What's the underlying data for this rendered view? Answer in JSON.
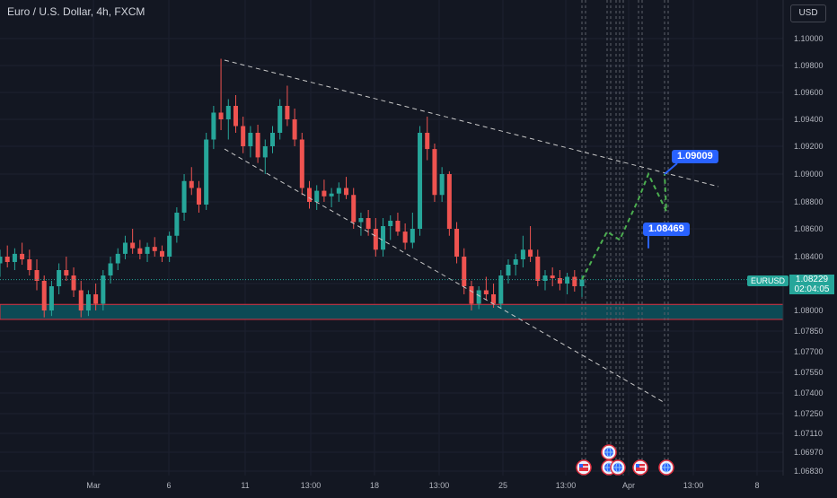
{
  "header": {
    "title": "Euro / U.S. Dollar, 4h, FXCM",
    "currency_button": "USD"
  },
  "symbol_label": "EURUSD",
  "current_price": "1.08229",
  "countdown": "02:04:05",
  "callouts": {
    "upper": "1.09009",
    "lower": "1.08469"
  },
  "colors": {
    "background": "#131722",
    "up": "#26a69a",
    "down": "#ef5350",
    "projection": "#4caf50",
    "callout": "#2962ff",
    "support_zone": "#0c4a55",
    "trendline": "#c8c8c8"
  },
  "event_icons": [
    "us-flag-icon",
    "globe-icon",
    "globe-icon",
    "globe-icon",
    "us-flag-icon",
    "globe-icon"
  ],
  "chart_data": {
    "type": "candlestick",
    "title": "Euro / U.S. Dollar, 4h, FXCM",
    "y_range": [
      1.0675,
      1.1015
    ],
    "y_ticks": [
      "1.10000",
      "1.09800",
      "1.09600",
      "1.09400",
      "1.09200",
      "1.09000",
      "1.08800",
      "1.08600",
      "1.08400",
      "1.08200",
      "1.08000",
      "1.07850",
      "1.07700",
      "1.07550",
      "1.07400",
      "1.07250",
      "1.07110",
      "1.06970",
      "1.06830"
    ],
    "x_ticks": [
      "Mar",
      "6",
      "11",
      "13:00",
      "18",
      "13:00",
      "25",
      "13:00",
      "Apr",
      "13:00",
      "8"
    ],
    "candles": [
      [
        1.0835,
        1.0845,
        1.0825,
        1.084
      ],
      [
        1.084,
        1.0848,
        1.0832,
        1.0836
      ],
      [
        1.0836,
        1.0846,
        1.083,
        1.0842
      ],
      [
        1.0842,
        1.085,
        1.0834,
        1.0838
      ],
      [
        1.0838,
        1.0845,
        1.0826,
        1.083
      ],
      [
        1.083,
        1.0838,
        1.0815,
        1.0822
      ],
      [
        1.0822,
        1.0826,
        1.0795,
        1.08
      ],
      [
        1.08,
        1.0822,
        1.0796,
        1.0818
      ],
      [
        1.0818,
        1.0835,
        1.0812,
        1.083
      ],
      [
        1.083,
        1.084,
        1.0822,
        1.0826
      ],
      [
        1.0826,
        1.0832,
        1.081,
        1.0815
      ],
      [
        1.0815,
        1.0822,
        1.0795,
        1.08
      ],
      [
        1.08,
        1.0815,
        1.0796,
        1.0812
      ],
      [
        1.0812,
        1.082,
        1.08,
        1.0805
      ],
      [
        1.0805,
        1.083,
        1.08,
        1.0826
      ],
      [
        1.0826,
        1.084,
        1.082,
        1.0835
      ],
      [
        1.0835,
        1.0846,
        1.083,
        1.0842
      ],
      [
        1.0842,
        1.0855,
        1.0838,
        1.085
      ],
      [
        1.085,
        1.086,
        1.0842,
        1.0846
      ],
      [
        1.0846,
        1.0852,
        1.0838,
        1.0842
      ],
      [
        1.0842,
        1.085,
        1.0836,
        1.0847
      ],
      [
        1.0847,
        1.0854,
        1.084,
        1.0844
      ],
      [
        1.0844,
        1.0848,
        1.0836,
        1.084
      ],
      [
        1.084,
        1.0858,
        1.0836,
        1.0855
      ],
      [
        1.0855,
        1.0876,
        1.085,
        1.0872
      ],
      [
        1.0872,
        1.09,
        1.0866,
        1.0895
      ],
      [
        1.0895,
        1.0905,
        1.0885,
        1.089
      ],
      [
        1.089,
        1.0895,
        1.0872,
        1.0878
      ],
      [
        1.0878,
        1.093,
        1.0874,
        1.0925
      ],
      [
        1.0925,
        1.095,
        1.0918,
        1.0945
      ],
      [
        1.0945,
        1.0985,
        1.0932,
        1.094
      ],
      [
        1.094,
        1.0955,
        1.0925,
        1.095
      ],
      [
        1.095,
        1.0958,
        1.093,
        1.0935
      ],
      [
        1.0935,
        1.0942,
        1.0915,
        1.092
      ],
      [
        1.092,
        1.0935,
        1.0912,
        1.093
      ],
      [
        1.093,
        1.0936,
        1.0908,
        1.0912
      ],
      [
        1.0912,
        1.0925,
        1.09,
        1.092
      ],
      [
        1.092,
        1.0935,
        1.0915,
        1.093
      ],
      [
        1.093,
        1.0955,
        1.0925,
        1.095
      ],
      [
        1.095,
        1.0965,
        1.0935,
        1.094
      ],
      [
        1.094,
        1.0948,
        1.092,
        1.0925
      ],
      [
        1.0925,
        1.093,
        1.0885,
        1.089
      ],
      [
        1.089,
        1.0895,
        1.0875,
        1.088
      ],
      [
        1.088,
        1.0892,
        1.0874,
        1.0888
      ],
      [
        1.0888,
        1.0896,
        1.088,
        1.0884
      ],
      [
        1.0884,
        1.089,
        1.0876,
        1.0886
      ],
      [
        1.0886,
        1.0894,
        1.088,
        1.089
      ],
      [
        1.089,
        1.0898,
        1.0882,
        1.0885
      ],
      [
        1.0885,
        1.089,
        1.086,
        1.0865
      ],
      [
        1.0865,
        1.0872,
        1.0855,
        1.0868
      ],
      [
        1.0868,
        1.0874,
        1.0855,
        1.086
      ],
      [
        1.086,
        1.0868,
        1.084,
        1.0845
      ],
      [
        1.0845,
        1.0868,
        1.084,
        1.0862
      ],
      [
        1.0862,
        1.087,
        1.0852,
        1.0866
      ],
      [
        1.0866,
        1.0872,
        1.0855,
        1.0858
      ],
      [
        1.0858,
        1.0864,
        1.0845,
        1.085
      ],
      [
        1.085,
        1.0872,
        1.0846,
        1.086
      ],
      [
        1.086,
        1.0935,
        1.0855,
        1.093
      ],
      [
        1.093,
        1.0942,
        1.091,
        1.0918
      ],
      [
        1.0918,
        1.0922,
        1.088,
        1.0885
      ],
      [
        1.0885,
        1.0905,
        1.088,
        1.09
      ],
      [
        1.09,
        1.0902,
        1.0855,
        1.086
      ],
      [
        1.086,
        1.0865,
        1.0835,
        1.084
      ],
      [
        1.084,
        1.0846,
        1.0812,
        1.0818
      ],
      [
        1.0818,
        1.0822,
        1.08,
        1.0805
      ],
      [
        1.0805,
        1.0818,
        1.0801,
        1.0815
      ],
      [
        1.0815,
        1.0825,
        1.0808,
        1.0812
      ],
      [
        1.0812,
        1.082,
        1.0802,
        1.0805
      ],
      [
        1.0805,
        1.083,
        1.0802,
        1.0826
      ],
      [
        1.0826,
        1.0838,
        1.082,
        1.0834
      ],
      [
        1.0834,
        1.0842,
        1.0826,
        1.0838
      ],
      [
        1.0838,
        1.0855,
        1.0832,
        1.0845
      ],
      [
        1.0845,
        1.0862,
        1.0836,
        1.084
      ],
      [
        1.084,
        1.0845,
        1.0818,
        1.0822
      ],
      [
        1.0822,
        1.083,
        1.0815,
        1.0826
      ],
      [
        1.0826,
        1.0832,
        1.0818,
        1.0824
      ],
      [
        1.0824,
        1.083,
        1.0815,
        1.082
      ],
      [
        1.082,
        1.0828,
        1.0812,
        1.0825
      ],
      [
        1.0825,
        1.083,
        1.0814,
        1.0818
      ],
      [
        1.0818,
        1.0826,
        1.081,
        1.0823
      ]
    ],
    "candle_x_range": [
      "Feb 29",
      "Mar 26"
    ],
    "support_zone": [
      1.07935,
      1.08045
    ],
    "trendlines": [
      {
        "name": "upper-trendline",
        "from": [
          1.0984,
          "Mar 8"
        ],
        "to": [
          1.0891,
          "Apr 5"
        ]
      },
      {
        "name": "lower-trendline",
        "from": [
          1.0918,
          "Mar 8"
        ],
        "to": [
          1.0733,
          "Apr 4"
        ]
      }
    ],
    "projection_path": [
      1.0823,
      1.0858,
      1.0852,
      1.0882,
      1.09,
      1.0873,
      1.09
    ],
    "projection_dates": [
      "Mar 26",
      "Mar 28",
      "Mar 30",
      "Apr 1",
      "Apr 2",
      "Apr 3",
      "Apr 4"
    ],
    "event_lines": [
      "Mar 26",
      "Mar 28",
      "Mar 29",
      "Mar 30",
      "Apr 1",
      "Apr 4"
    ],
    "event_icon_positions": [
      [
        "Mar 26",
        "low"
      ],
      [
        "Mar 28",
        "low"
      ],
      [
        "Mar 28",
        "high"
      ],
      [
        "Mar 29",
        "low"
      ],
      [
        "Apr 1",
        "low"
      ],
      [
        "Apr 4",
        "low"
      ]
    ]
  }
}
